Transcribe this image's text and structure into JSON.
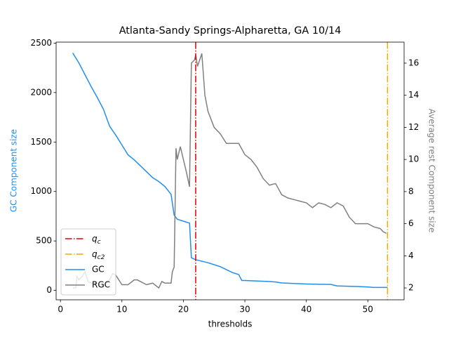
{
  "chart_data": {
    "type": "line",
    "title": "Atlanta-Sandy Springs-Alpharetta, GA 10/14",
    "x_label": "thresholds",
    "y_label": "GC Component size",
    "y2_label": "Average rest Component size",
    "y_label_color": "#1f8fef",
    "y2_label_color": "#808080",
    "xlim": [
      -0.7,
      55.9
    ],
    "xticks": [
      0,
      10,
      20,
      30,
      40,
      50
    ],
    "ylim": [
      -95,
      2510
    ],
    "yticks": [
      0,
      500,
      1000,
      1500,
      2000,
      2500
    ],
    "y2lim": [
      1.26,
      17.31
    ],
    "y2ticks": [
      2,
      4,
      6,
      8,
      10,
      12,
      14,
      16
    ],
    "grid": false,
    "legend": "lower left",
    "vlines": [
      {
        "name": "qc",
        "x": 22,
        "color": "#e00000"
      },
      {
        "name": "qc2",
        "x": 53.2,
        "color": "#ffa500"
      }
    ],
    "series": [
      {
        "name": "GC",
        "color": "#1f8fef",
        "x": [
          2,
          3,
          4,
          5,
          6,
          7,
          8,
          9,
          10,
          11,
          12,
          13,
          14,
          15,
          16,
          17,
          18,
          18.5,
          19,
          20,
          21,
          21.3,
          22,
          23,
          24,
          25,
          26,
          27,
          28,
          29,
          29.5,
          30,
          32,
          34,
          35,
          36,
          38,
          40,
          42,
          44,
          45,
          47,
          48,
          50,
          51,
          53.2
        ],
        "values": [
          2400,
          2300,
          2180,
          2060,
          1950,
          1830,
          1660,
          1570,
          1470,
          1370,
          1320,
          1260,
          1200,
          1140,
          1100,
          1050,
          970,
          760,
          720,
          700,
          680,
          330,
          310,
          295,
          280,
          260,
          240,
          210,
          180,
          160,
          100,
          100,
          95,
          90,
          85,
          75,
          70,
          65,
          62,
          60,
          45,
          42,
          40,
          35,
          30,
          30
        ]
      },
      {
        "name": "RGC",
        "color": "#808080",
        "axis": "y2",
        "x": [
          2,
          2.5,
          2.7,
          3,
          3.5,
          4,
          4.5,
          5,
          6,
          7,
          8,
          8.5,
          9,
          10,
          11,
          12,
          12.5,
          13,
          14,
          15,
          16,
          16.5,
          17,
          18,
          18.2,
          18.5,
          18.8,
          19,
          19.5,
          20,
          20.5,
          21,
          21.3,
          21.8,
          22,
          22.3,
          23,
          23.5,
          24,
          25,
          26,
          27,
          28,
          29,
          30,
          31,
          32,
          33,
          34,
          35,
          36,
          37,
          38,
          39,
          40,
          41,
          42,
          43,
          44,
          45,
          46,
          47,
          48,
          49,
          50,
          51,
          52,
          52.5,
          53
        ],
        "values": [
          1.98,
          2.0,
          2.7,
          2.5,
          2.7,
          3.0,
          2.4,
          2.3,
          2.3,
          2.1,
          2.5,
          2.9,
          2.8,
          2.2,
          2.2,
          2.5,
          2.5,
          2.4,
          2.2,
          2.3,
          2.0,
          2.4,
          2.3,
          2.3,
          3.0,
          3.3,
          10.7,
          10.0,
          10.8,
          10.0,
          9.2,
          8.3,
          16.0,
          16.2,
          16.5,
          15.8,
          16.6,
          14.0,
          13.0,
          12.0,
          11.6,
          11.0,
          11.0,
          11.0,
          10.3,
          10.0,
          9.5,
          8.8,
          8.4,
          8.5,
          7.8,
          7.6,
          7.5,
          7.4,
          7.3,
          7.0,
          7.3,
          7.2,
          7.0,
          7.3,
          7.1,
          6.4,
          6.0,
          6.0,
          6.0,
          5.8,
          5.7,
          5.5,
          5.4
        ]
      }
    ]
  }
}
